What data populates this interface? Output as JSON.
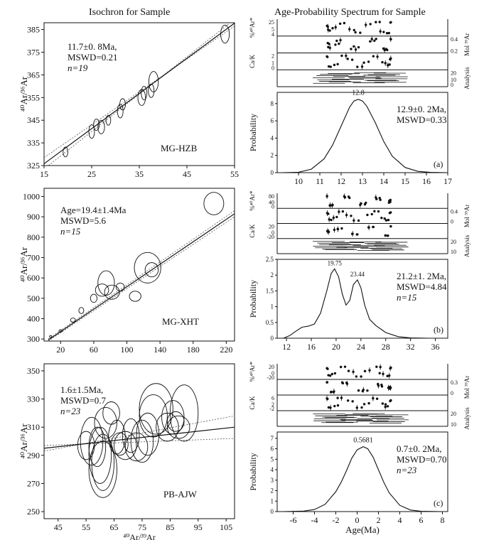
{
  "titles": {
    "left": "Isochron for Sample",
    "right": "Age-Probability Spectrum for Sample"
  },
  "chart_data": [
    {
      "type": "scatter",
      "panel": "isochron-a",
      "title": "",
      "xlabel": "",
      "ylabel": "⁴⁰Ar/³⁶Ar",
      "xlim": [
        15,
        55
      ],
      "ylim": [
        325,
        388
      ],
      "xticks": [
        "15",
        "25",
        "35",
        "45",
        "55"
      ],
      "yticks": [
        "325",
        "335",
        "345",
        "355",
        "365",
        "375",
        "385"
      ],
      "annotation": [
        "11.7±0. 8Ma,",
        "MSWD=0.21",
        "n=19"
      ],
      "sample": "MG-HZB",
      "fit_line": [
        [
          15,
          325.8
        ],
        [
          55,
          387.8
        ]
      ],
      "envelope_upper": [
        [
          15,
          328.5
        ],
        [
          55,
          386.5
        ]
      ],
      "envelope_lower": [
        [
          15,
          323.5
        ],
        [
          55,
          389.5
        ]
      ],
      "points": [
        {
          "x": 19.5,
          "y": 331,
          "rx": 0.5,
          "ry": 2.2
        },
        {
          "x": 25,
          "y": 340,
          "rx": 0.6,
          "ry": 3
        },
        {
          "x": 26,
          "y": 343,
          "rx": 0.6,
          "ry": 2.5
        },
        {
          "x": 27,
          "y": 342,
          "rx": 0.7,
          "ry": 3
        },
        {
          "x": 28.5,
          "y": 345,
          "rx": 0.5,
          "ry": 2.2
        },
        {
          "x": 31,
          "y": 349,
          "rx": 0.6,
          "ry": 3
        },
        {
          "x": 31.5,
          "y": 352,
          "rx": 0.6,
          "ry": 2.5
        },
        {
          "x": 35.5,
          "y": 355,
          "rx": 0.8,
          "ry": 3.5
        },
        {
          "x": 36,
          "y": 357,
          "rx": 0.6,
          "ry": 3
        },
        {
          "x": 37.5,
          "y": 358,
          "rx": 0.6,
          "ry": 3
        },
        {
          "x": 38,
          "y": 362,
          "rx": 1,
          "ry": 4.5
        },
        {
          "x": 53,
          "y": 383,
          "rx": 0.9,
          "ry": 4
        }
      ]
    },
    {
      "type": "scatter",
      "panel": "isochron-b",
      "title": "",
      "xlabel": "",
      "ylabel": "⁴⁰Ar/³⁶Ar",
      "xlim": [
        0,
        230
      ],
      "ylim": [
        290,
        1040
      ],
      "xticks": [
        "20",
        "60",
        "100",
        "140",
        "180",
        "220"
      ],
      "yticks": [
        "300",
        "400",
        "500",
        "600",
        "700",
        "800",
        "900",
        "1000"
      ],
      "annotation": [
        "Age=19.4±1.4Ma",
        "MSWD=5.6",
        "n=15"
      ],
      "sample": "MG-XHT",
      "fit_line": [
        [
          5,
          295
        ],
        [
          230,
          915
        ]
      ],
      "envelope_upper": [
        [
          5,
          300
        ],
        [
          230,
          930
        ]
      ],
      "envelope_lower": [
        [
          5,
          290
        ],
        [
          230,
          900
        ]
      ],
      "points": [
        {
          "x": 8,
          "y": 312,
          "rx": 1.5,
          "ry": 5
        },
        {
          "x": 20,
          "y": 340,
          "rx": 2,
          "ry": 6
        },
        {
          "x": 35,
          "y": 393,
          "rx": 3,
          "ry": 10
        },
        {
          "x": 45,
          "y": 440,
          "rx": 3,
          "ry": 15
        },
        {
          "x": 60,
          "y": 500,
          "rx": 4,
          "ry": 20
        },
        {
          "x": 70,
          "y": 540,
          "rx": 8,
          "ry": 30
        },
        {
          "x": 75,
          "y": 575,
          "rx": 10,
          "ry": 60
        },
        {
          "x": 82,
          "y": 530,
          "rx": 9,
          "ry": 35
        },
        {
          "x": 92,
          "y": 555,
          "rx": 5,
          "ry": 20
        },
        {
          "x": 110,
          "y": 510,
          "rx": 7,
          "ry": 25
        },
        {
          "x": 125,
          "y": 650,
          "rx": 16,
          "ry": 75
        },
        {
          "x": 130,
          "y": 640,
          "rx": 8,
          "ry": 35
        },
        {
          "x": 205,
          "y": 965,
          "rx": 12,
          "ry": 55
        }
      ]
    },
    {
      "type": "scatter",
      "panel": "isochron-c",
      "title": "",
      "xlabel": "⁴⁰Ar/³⁹Ar",
      "ylabel": "⁴⁰Ar/³⁶Ar",
      "xlim": [
        40,
        108
      ],
      "ylim": [
        245,
        355
      ],
      "xticks": [
        "45",
        "55",
        "65",
        "75",
        "85",
        "95",
        "105"
      ],
      "yticks": [
        "250",
        "270",
        "290",
        "310",
        "330",
        "350"
      ],
      "annotation": [
        "1.6±1.5Ma,",
        "MSWD=0.7",
        "n=23"
      ],
      "sample": "PB-AJW",
      "fit_line": [
        [
          40,
          295
        ],
        [
          108,
          310
        ]
      ],
      "envelope_upper": [
        [
          40,
          293
        ],
        [
          108,
          318
        ]
      ],
      "envelope_lower": [
        [
          40,
          297
        ],
        [
          108,
          302
        ]
      ],
      "points": [
        {
          "x": 55,
          "y": 297,
          "rx": 3,
          "ry": 10
        },
        {
          "x": 57,
          "y": 300,
          "rx": 4,
          "ry": 17
        },
        {
          "x": 59,
          "y": 296,
          "rx": 3,
          "ry": 14
        },
        {
          "x": 60,
          "y": 290,
          "rx": 4,
          "ry": 20
        },
        {
          "x": 61,
          "y": 285,
          "rx": 4,
          "ry": 20
        },
        {
          "x": 61,
          "y": 280,
          "rx": 5,
          "ry": 20
        },
        {
          "x": 62,
          "y": 313,
          "rx": 4,
          "ry": 11
        },
        {
          "x": 64,
          "y": 320,
          "rx": 3,
          "ry": 8
        },
        {
          "x": 66,
          "y": 303,
          "rx": 3,
          "ry": 12
        },
        {
          "x": 67,
          "y": 298,
          "rx": 3,
          "ry": 8
        },
        {
          "x": 69,
          "y": 297,
          "rx": 4,
          "ry": 10
        },
        {
          "x": 71,
          "y": 304,
          "rx": 3,
          "ry": 12
        },
        {
          "x": 73,
          "y": 296,
          "rx": 4,
          "ry": 10
        },
        {
          "x": 75,
          "y": 300,
          "rx": 4,
          "ry": 15
        },
        {
          "x": 77,
          "y": 305,
          "rx": 4,
          "ry": 15
        },
        {
          "x": 79,
          "y": 318,
          "rx": 5,
          "ry": 15
        },
        {
          "x": 80,
          "y": 323,
          "rx": 6,
          "ry": 18
        },
        {
          "x": 84,
          "y": 310,
          "rx": 4,
          "ry": 10
        },
        {
          "x": 86,
          "y": 317,
          "rx": 4,
          "ry": 12
        },
        {
          "x": 87,
          "y": 314,
          "rx": 3,
          "ry": 7
        },
        {
          "x": 88,
          "y": 310,
          "rx": 4,
          "ry": 8
        },
        {
          "x": 90,
          "y": 320,
          "rx": 5,
          "ry": 20
        }
      ]
    },
    {
      "type": "line",
      "panel": "probability-a",
      "title": "",
      "xlabel": "",
      "ylabel": "Probability",
      "xlim": [
        9,
        17
      ],
      "ylim": [
        0,
        9.3
      ],
      "xticks": [
        "10",
        "11",
        "12",
        "13",
        "14",
        "15",
        "16",
        "17"
      ],
      "yticks": [
        "0",
        "2",
        "4",
        "6",
        "8"
      ],
      "peak_label": "12.8",
      "peak_x": 12.8,
      "annotation": [
        "12.9±0. 2Ma,",
        "MSWD=0.33"
      ],
      "panel_label": "(a)",
      "x": [
        9.2,
        10,
        10.6,
        11.2,
        11.6,
        12,
        12.4,
        12.6,
        12.8,
        13,
        13.2,
        13.6,
        14,
        14.4,
        15,
        15.6,
        16.2,
        17
      ],
      "y": [
        0,
        0.05,
        0.4,
        1.6,
        3.2,
        5.4,
        7.6,
        8.3,
        8.5,
        8.3,
        7.7,
        5.8,
        3.6,
        1.9,
        0.6,
        0.15,
        0.03,
        0
      ],
      "sub_panels": [
        {
          "label": "%⁴⁰Ar*",
          "yticks": [
            "25",
            "5",
            "4"
          ]
        },
        {
          "label": "Mol ³⁹Ar",
          "yticks": [
            "0.4",
            "0.2"
          ]
        },
        {
          "label": "Ca/K",
          "yticks": [
            "2",
            "1",
            "0"
          ]
        },
        {
          "label": "Analysis",
          "yticks": [
            "20",
            "10",
            "0"
          ]
        }
      ]
    },
    {
      "type": "line",
      "panel": "probability-b",
      "title": "",
      "xlabel": "",
      "ylabel": "Probability",
      "xlim": [
        10.5,
        38
      ],
      "ylim": [
        0,
        2.5
      ],
      "xticks": [
        "12",
        "16",
        "20",
        "24",
        "28",
        "32",
        "36"
      ],
      "yticks": [
        "0",
        "0.5",
        "1",
        "1.5",
        "2",
        "2.5"
      ],
      "peak_labels": [
        {
          "text": "19.75",
          "x": 19.75
        },
        {
          "text": "23.44",
          "x": 23.44
        }
      ],
      "annotation": [
        "21.2±1. 2Ma,",
        "MSWD=4.84",
        "n=15"
      ],
      "panel_label": "(b)",
      "x": [
        11.5,
        12.5,
        13.5,
        14.5,
        15.5,
        16.5,
        17.5,
        18.5,
        19.2,
        19.75,
        20.4,
        21,
        21.6,
        22.2,
        22.8,
        23.44,
        24,
        24.6,
        25.4,
        26.4,
        28,
        30,
        32,
        35
      ],
      "y": [
        0,
        0.08,
        0.22,
        0.35,
        0.38,
        0.45,
        0.8,
        1.5,
        2.05,
        2.2,
        1.95,
        1.4,
        1.05,
        1.2,
        1.7,
        1.85,
        1.6,
        1.05,
        0.6,
        0.4,
        0.18,
        0.05,
        0.01,
        0
      ],
      "sub_panels": [
        {
          "label": "%⁴⁰Ar*",
          "yticks": [
            "80",
            "40",
            "0"
          ]
        },
        {
          "label": "Mol ³⁹Ar",
          "yticks": [
            "0.4",
            "0"
          ]
        },
        {
          "label": "Ca/K",
          "yticks": [
            "20",
            "0",
            "-20"
          ]
        },
        {
          "label": "Analysis",
          "yticks": [
            "20",
            "10"
          ]
        }
      ]
    },
    {
      "type": "line",
      "panel": "probability-c",
      "title": "",
      "xlabel": "Age(Ma)",
      "ylabel": "Probability",
      "xlim": [
        -7.5,
        8.5
      ],
      "ylim": [
        0,
        7.6
      ],
      "xticks": [
        "-6",
        "-4",
        "-2",
        "0",
        "2",
        "4",
        "6",
        "8"
      ],
      "yticks": [
        "0",
        "1",
        "2",
        "3",
        "4",
        "5",
        "6",
        "7"
      ],
      "peak_label": "0.5681",
      "peak_x": 0.5681,
      "annotation": [
        "0.7±0. 2Ma,",
        "MSWD=0.70",
        "n=23"
      ],
      "panel_label": "(c)",
      "x": [
        -7,
        -5,
        -4,
        -3,
        -2,
        -1.5,
        -1,
        -0.5,
        0,
        0.57,
        1,
        1.5,
        2,
        2.5,
        3,
        4,
        5,
        6,
        8
      ],
      "y": [
        0,
        0.05,
        0.2,
        0.7,
        1.9,
        2.8,
        3.9,
        5.1,
        5.9,
        6.2,
        6.0,
        5.2,
        4.0,
        2.8,
        1.8,
        0.6,
        0.15,
        0.03,
        0
      ],
      "sub_panels": [
        {
          "label": "%⁴⁰Ar*",
          "yticks": [
            "20",
            "0",
            "-20"
          ]
        },
        {
          "label": "Mol ³⁹Ar",
          "yticks": [
            "0.3",
            "0"
          ]
        },
        {
          "label": "Ca/K",
          "yticks": [
            "6",
            "2",
            "-2"
          ]
        },
        {
          "label": "Analysis",
          "yticks": [
            "20",
            "10"
          ]
        }
      ]
    }
  ]
}
